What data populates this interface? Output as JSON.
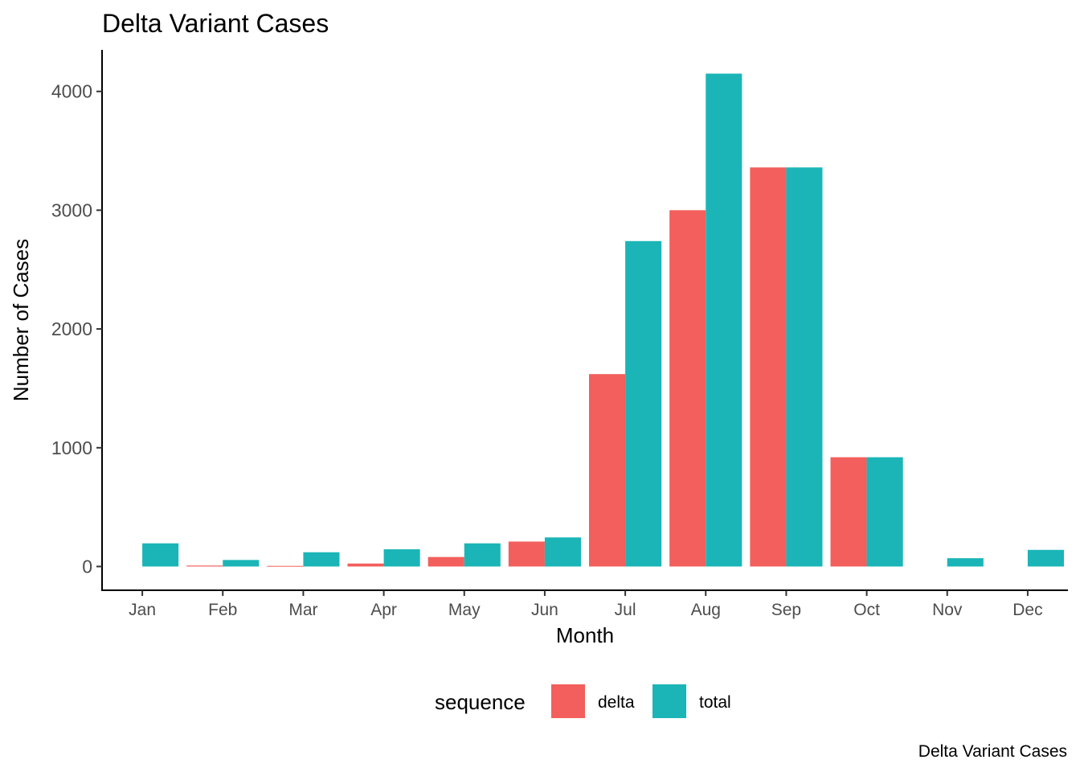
{
  "chart_data": {
    "type": "bar",
    "title": "Delta Variant Cases",
    "xlabel": "Month",
    "ylabel": "Number of Cases",
    "caption": "Delta Variant Cases",
    "categories": [
      "Jan",
      "Feb",
      "Mar",
      "Apr",
      "May",
      "Jun",
      "Jul",
      "Aug",
      "Sep",
      "Oct",
      "Nov",
      "Dec"
    ],
    "series": [
      {
        "name": "delta",
        "color": "#F25F5C",
        "values": [
          0,
          8,
          5,
          25,
          80,
          210,
          1620,
          3000,
          3360,
          920,
          0,
          0
        ]
      },
      {
        "name": "total",
        "color": "#1BB5B7",
        "values": [
          195,
          55,
          120,
          145,
          195,
          245,
          2740,
          4150,
          3360,
          920,
          70,
          140
        ]
      }
    ],
    "yticks": [
      0,
      1000,
      2000,
      3000,
      4000
    ],
    "ylim": [
      -200,
      4350
    ],
    "grid": false,
    "legend": {
      "title": "sequence",
      "position": "bottom"
    }
  }
}
